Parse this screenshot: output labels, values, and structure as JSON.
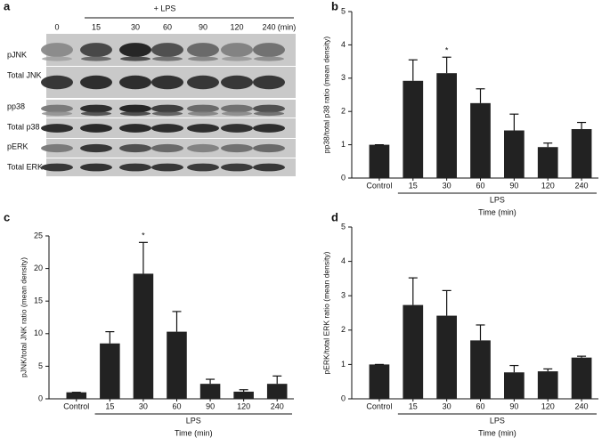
{
  "blot": {
    "label": "a",
    "treatment": "+ LPS",
    "lanes": [
      "0",
      "15",
      "30",
      "60",
      "90",
      "120",
      "240"
    ],
    "unit": "(min)",
    "rows": [
      "pJNK",
      "Total JNK",
      "pp38",
      "Total p38",
      "pERK",
      "Total ERK"
    ]
  },
  "chart_data": [
    {
      "type": "bar",
      "label": "b",
      "ylabel": "pp38/total p38 ratio (mean density)",
      "xlabel": "Time (min)",
      "categories": [
        "Control",
        "15",
        "30",
        "60",
        "90",
        "120",
        "240"
      ],
      "values": [
        1.0,
        2.92,
        3.15,
        2.25,
        1.43,
        0.93,
        1.47
      ],
      "errors": [
        0,
        0.63,
        0.48,
        0.43,
        0.49,
        0.12,
        0.2
      ],
      "group": {
        "label": "LPS",
        "start": "15",
        "end": "240"
      },
      "annotations": [
        {
          "text": "*",
          "category": "30"
        }
      ],
      "color": "#222222",
      "ylim": [
        0,
        5
      ],
      "yticks": [
        0,
        1,
        2,
        3,
        4,
        5
      ]
    },
    {
      "type": "bar",
      "label": "c",
      "ylabel": "pJNK/total JNK ratio (mean density)",
      "xlabel": "Time (min)",
      "categories": [
        "Control",
        "15",
        "30",
        "60",
        "90",
        "120",
        "240"
      ],
      "values": [
        1.0,
        8.5,
        19.2,
        10.3,
        2.3,
        1.1,
        2.3
      ],
      "errors": [
        0,
        1.8,
        4.8,
        3.1,
        0.7,
        0.3,
        1.2
      ],
      "group": {
        "label": "LPS",
        "start": "15",
        "end": "240"
      },
      "annotations": [
        {
          "text": "*",
          "category": "30"
        }
      ],
      "color": "#222222",
      "ylim": [
        0,
        25
      ],
      "yticks": [
        0,
        5,
        10,
        15,
        20,
        25
      ]
    },
    {
      "type": "bar",
      "label": "d",
      "ylabel": "pERK/total ERK ratio (mean density)",
      "xlabel": "Time (min)",
      "categories": [
        "Control",
        "15",
        "30",
        "60",
        "90",
        "120",
        "240"
      ],
      "values": [
        1.0,
        2.73,
        2.42,
        1.7,
        0.77,
        0.8,
        1.2
      ],
      "errors": [
        0,
        0.79,
        0.73,
        0.45,
        0.2,
        0.07,
        0.04
      ],
      "group": {
        "label": "LPS",
        "start": "15",
        "end": "240"
      },
      "annotations": [],
      "color": "#222222",
      "ylim": [
        0,
        5
      ],
      "yticks": [
        0,
        1,
        2,
        3,
        4,
        5
      ]
    }
  ]
}
